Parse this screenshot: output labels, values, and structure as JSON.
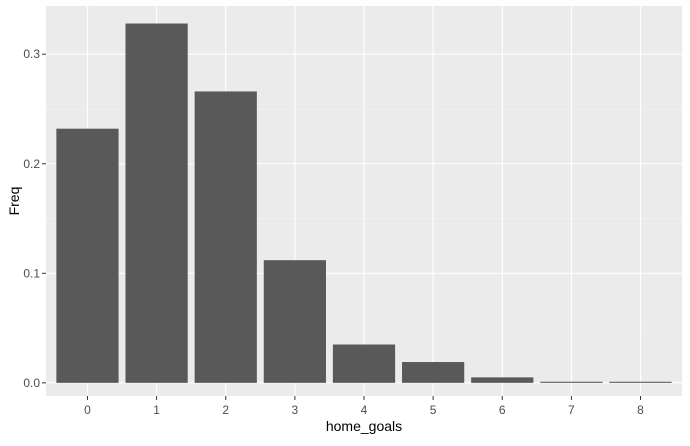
{
  "chart_data": {
    "type": "bar",
    "title": "",
    "xlabel": "home_goals",
    "ylabel": "Freq",
    "categories": [
      "0",
      "1",
      "2",
      "3",
      "4",
      "5",
      "6",
      "7",
      "8"
    ],
    "values": [
      0.232,
      0.328,
      0.266,
      0.112,
      0.035,
      0.019,
      0.005,
      0.001,
      0.001
    ],
    "ylim": [
      -0.012,
      0.344
    ],
    "y_ticks": [
      {
        "value": 0.0,
        "label": "0.0"
      },
      {
        "value": 0.1,
        "label": "0.1"
      },
      {
        "value": 0.2,
        "label": "0.2"
      },
      {
        "value": 0.3,
        "label": "0.3"
      }
    ],
    "y_minor_ticks": [
      0.05,
      0.15,
      0.25
    ],
    "grid": true,
    "legend": "none",
    "colors": {
      "panel_background": "#ebebeb",
      "grid_major": "#ffffff",
      "grid_minor": "#f5f5f5",
      "bar_fill": "#595959",
      "tick_text": "#4d4d4d",
      "axis_title_text": "#000000",
      "tick_mark": "#333333"
    }
  }
}
